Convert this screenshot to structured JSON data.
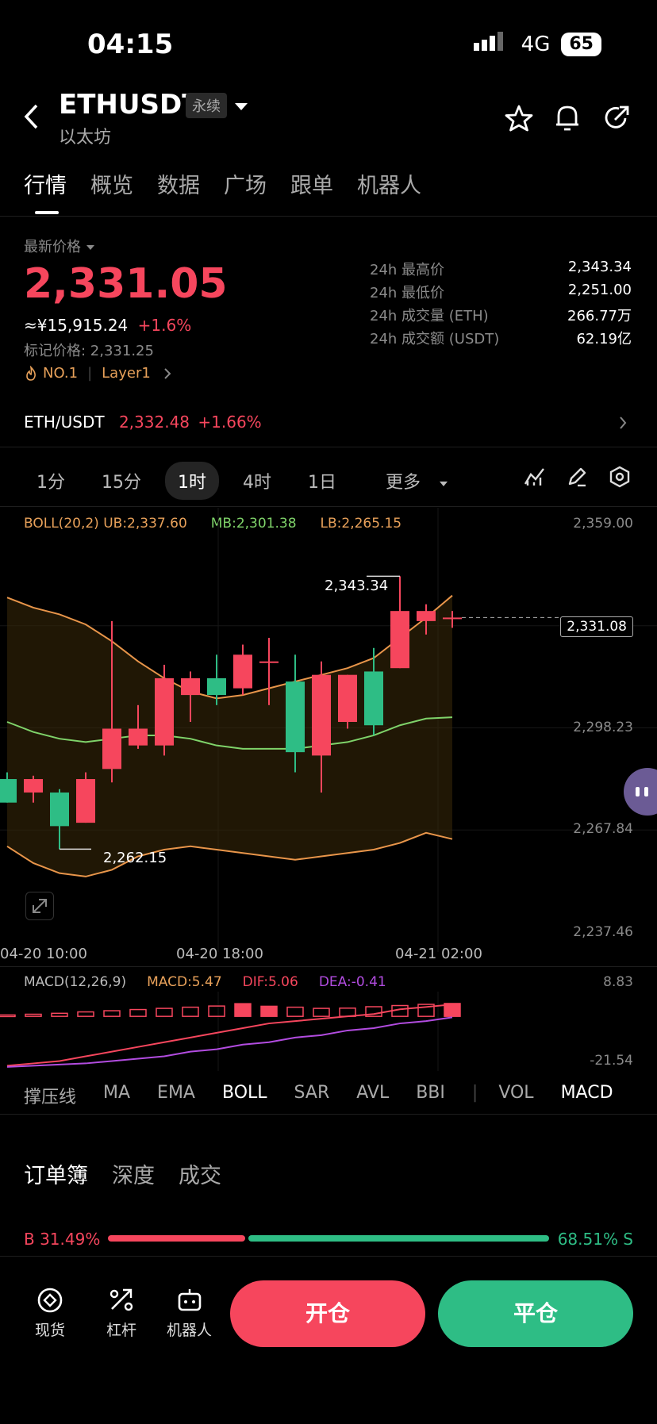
{
  "status": {
    "time": "04:15",
    "network": "4G",
    "battery": "65"
  },
  "header": {
    "symbol": "ETHUSDT",
    "badge": "永续",
    "subtitle": "以太坊"
  },
  "tabs": [
    "行情",
    "概览",
    "数据",
    "广场",
    "跟单",
    "机器人"
  ],
  "price": {
    "label": "最新价格",
    "last": "2,331.05",
    "cny": "≈¥15,915.24",
    "change": "+1.6%",
    "mark": "标记价格: 2,331.25",
    "rank": "NO.1",
    "sector": "Layer1"
  },
  "stats": [
    {
      "k": "24h 最高价",
      "v": "2,343.34"
    },
    {
      "k": "24h 最低价",
      "v": "2,251.00"
    },
    {
      "k": "24h 成交量 (ETH)",
      "v": "266.77万"
    },
    {
      "k": "24h 成交额 (USDT)",
      "v": "62.19亿"
    }
  ],
  "spot": {
    "pair": "ETH/USDT",
    "price": "2,332.48",
    "change": "+1.66%"
  },
  "intervals": [
    "1分",
    "15分",
    "1时",
    "4时",
    "1日",
    "更多"
  ],
  "boll": {
    "label": "BOLL(20,2)",
    "ub": "UB:2,337.60",
    "mb": "MB:2,301.38",
    "lb": "LB:2,265.15"
  },
  "axis": {
    "y": [
      "2,359.00",
      "2,298.23",
      "2,267.84",
      "2,237.46"
    ],
    "current": "2,331.08",
    "x": [
      "04-20 10:00",
      "04-20 18:00",
      "04-21 02:00"
    ],
    "high_label": "2,343.34",
    "low_label": "2,262.15"
  },
  "macd": {
    "label": "MACD(12,26,9)",
    "macd": "MACD:5.47",
    "dif": "DIF:5.06",
    "dea": "DEA:-0.41",
    "top": "8.83",
    "bottom": "-21.54"
  },
  "indicators": [
    "撑压线",
    "MA",
    "EMA",
    "BOLL",
    "SAR",
    "AVL",
    "BBI",
    "VOL",
    "MACD"
  ],
  "orderbook": {
    "tabs": [
      "订单簿",
      "深度",
      "成交"
    ],
    "buy": "B 31.49%",
    "sell": "68.51% S",
    "buy_ratio": 0.3149
  },
  "bottom": {
    "nav": [
      "现货",
      "杠杆",
      "机器人"
    ],
    "open": "开仓",
    "close": "平仓"
  },
  "chart_data": {
    "type": "candlestick",
    "ylim": [
      2237.46,
      2359.0
    ],
    "candles": [
      {
        "o": 2283,
        "h": 2285,
        "l": 2276,
        "c": 2276
      },
      {
        "o": 2279,
        "h": 2284,
        "l": 2276,
        "c": 2283
      },
      {
        "o": 2279,
        "h": 2280,
        "l": 2262.15,
        "c": 2269
      },
      {
        "o": 2270,
        "h": 2285,
        "l": 2270,
        "c": 2283
      },
      {
        "o": 2286,
        "h": 2330,
        "l": 2282,
        "c": 2298
      },
      {
        "o": 2293,
        "h": 2305,
        "l": 2292,
        "c": 2298
      },
      {
        "o": 2293,
        "h": 2317,
        "l": 2290,
        "c": 2313
      },
      {
        "o": 2308,
        "h": 2315,
        "l": 2300,
        "c": 2313
      },
      {
        "o": 2313,
        "h": 2320,
        "l": 2305,
        "c": 2308
      },
      {
        "o": 2310,
        "h": 2323,
        "l": 2308,
        "c": 2320
      },
      {
        "o": 2318,
        "h": 2325,
        "l": 2305,
        "c": 2318
      },
      {
        "o": 2312,
        "h": 2320,
        "l": 2285,
        "c": 2291
      },
      {
        "o": 2290,
        "h": 2318,
        "l": 2279,
        "c": 2314
      },
      {
        "o": 2300,
        "h": 2314,
        "l": 2298,
        "c": 2314
      },
      {
        "o": 2315,
        "h": 2322,
        "l": 2296,
        "c": 2299
      },
      {
        "o": 2316,
        "h": 2343.34,
        "l": 2316,
        "c": 2333
      },
      {
        "o": 2330,
        "h": 2335,
        "l": 2326,
        "c": 2333
      },
      {
        "o": 2331,
        "h": 2333,
        "l": 2328,
        "c": 2331.05
      }
    ],
    "boll_ub": [
      2337,
      2334,
      2332,
      2329,
      2324,
      2318,
      2313,
      2309,
      2307,
      2308,
      2310,
      2312,
      2314,
      2316,
      2319,
      2325,
      2331,
      2337.6
    ],
    "boll_mb": [
      2300,
      2297,
      2295,
      2294,
      2295,
      2296,
      2296,
      2295,
      2293,
      2292,
      2292,
      2292,
      2293,
      2294,
      2296,
      2299,
      2301,
      2301.38
    ],
    "boll_lb": [
      2263,
      2258,
      2255,
      2254,
      2256,
      2260,
      2262,
      2263,
      2262,
      2261,
      2260,
      2259,
      2260,
      2261,
      2262,
      2264,
      2267,
      2265.15
    ],
    "macd_hist": [
      0.6,
      0.9,
      1.3,
      1.9,
      2.4,
      2.9,
      3.4,
      3.9,
      4.4,
      5.4,
      4.3,
      3.9,
      3.4,
      3.5,
      4.1,
      4.6,
      5.1,
      5.47
    ],
    "dif": [
      -21,
      -20,
      -19,
      -17,
      -15,
      -13,
      -11,
      -9,
      -7,
      -5,
      -3,
      -2,
      -1,
      0,
      1,
      3,
      4,
      5.06
    ],
    "dea": [
      -21.5,
      -21,
      -20.5,
      -20,
      -19,
      -18,
      -17,
      -15,
      -14,
      -12,
      -11,
      -9,
      -8,
      -6,
      -5,
      -3,
      -2,
      -0.41
    ],
    "macd_ylim": [
      -21.54,
      8.83
    ]
  }
}
